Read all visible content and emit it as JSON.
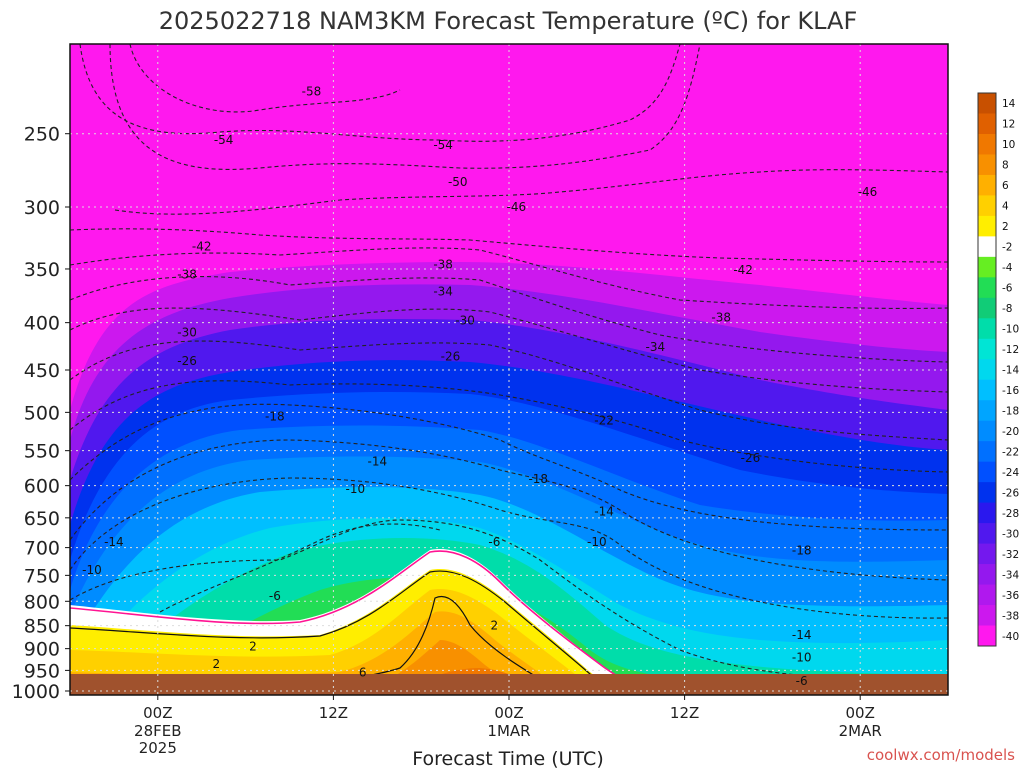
{
  "chart_data": {
    "type": "time-height contour",
    "title": "2025022718 NAM3KM Forecast Temperature (ºC) for KLAF",
    "xlabel": "Forecast Time (UTC)",
    "ylabel": "",
    "y_ticks": [
      "250",
      "300",
      "350",
      "400",
      "450",
      "500",
      "550",
      "600",
      "650",
      "700",
      "750",
      "800",
      "850",
      "900",
      "950",
      "1000"
    ],
    "y_scale": "log",
    "y_range_hpa": [
      200,
      1010
    ],
    "x_ticks": [
      {
        "label": "00Z",
        "date": "28FEB",
        "year": "2025",
        "hour": 6
      },
      {
        "label": "12Z",
        "date": "",
        "year": "",
        "hour": 18
      },
      {
        "label": "00Z",
        "date": "1MAR",
        "year": "",
        "hour": 30
      },
      {
        "label": "12Z",
        "date": "",
        "year": "",
        "hour": 42
      },
      {
        "label": "00Z",
        "date": "2MAR",
        "year": "",
        "hour": 54
      }
    ],
    "x_range_hours": [
      0,
      60
    ],
    "grid": true,
    "colorbar": {
      "placement": "right",
      "labels": [
        "14",
        "12",
        "10",
        "8",
        "6",
        "4",
        "2",
        "-2",
        "-4",
        "-6",
        "-8",
        "-10",
        "-12",
        "-14",
        "-16",
        "-18",
        "-20",
        "-22",
        "-24",
        "-26",
        "-28",
        "-30",
        "-32",
        "-34",
        "-36",
        "-38",
        "-40"
      ],
      "colors": [
        "#c85000",
        "#e06000",
        "#f07800",
        "#f89000",
        "#ffb000",
        "#ffd000",
        "#ffee00",
        "#ffffff",
        "#66ee22",
        "#22dd55",
        "#11cc77",
        "#00ddaa",
        "#00e5d5",
        "#00d8ee",
        "#00bfff",
        "#00a5ff",
        "#008cff",
        "#0070ff",
        "#0050ff",
        "#0032ee",
        "#2a18ee",
        "#5018ee",
        "#7418ee",
        "#9418ee",
        "#b018ee",
        "#cc18ee",
        "#ff18ee"
      ]
    },
    "contour_labels": [
      {
        "text": "-58",
        "hour": 16.5,
        "p": 225
      },
      {
        "text": "-54",
        "hour": 10.5,
        "p": 254
      },
      {
        "text": "-54",
        "hour": 25.5,
        "p": 257
      },
      {
        "text": "-50",
        "hour": 26.5,
        "p": 282
      },
      {
        "text": "-46",
        "hour": 30.5,
        "p": 300
      },
      {
        "text": "-46",
        "hour": 54.5,
        "p": 289
      },
      {
        "text": "-42",
        "hour": 9,
        "p": 331
      },
      {
        "text": "-42",
        "hour": 46,
        "p": 351
      },
      {
        "text": "-38",
        "hour": 8,
        "p": 355
      },
      {
        "text": "-38",
        "hour": 25.5,
        "p": 346
      },
      {
        "text": "-38",
        "hour": 44.5,
        "p": 395
      },
      {
        "text": "-34",
        "hour": 25.5,
        "p": 370
      },
      {
        "text": "-34",
        "hour": 40,
        "p": 425
      },
      {
        "text": "-30",
        "hour": 8,
        "p": 410
      },
      {
        "text": "-30",
        "hour": 27,
        "p": 398
      },
      {
        "text": "-26",
        "hour": 8,
        "p": 440
      },
      {
        "text": "-26",
        "hour": 26,
        "p": 435
      },
      {
        "text": "-26",
        "hour": 46.5,
        "p": 560
      },
      {
        "text": "-22",
        "hour": 36.5,
        "p": 510
      },
      {
        "text": "-18",
        "hour": 14,
        "p": 505
      },
      {
        "text": "-18",
        "hour": 32,
        "p": 590
      },
      {
        "text": "-18",
        "hour": 50,
        "p": 705
      },
      {
        "text": "-14",
        "hour": 21,
        "p": 565
      },
      {
        "text": "-14",
        "hour": 3,
        "p": 690
      },
      {
        "text": "-14",
        "hour": 36.5,
        "p": 640
      },
      {
        "text": "-14",
        "hour": 50,
        "p": 870
      },
      {
        "text": "-10",
        "hour": 19.5,
        "p": 605
      },
      {
        "text": "-10",
        "hour": 1.5,
        "p": 740
      },
      {
        "text": "-10",
        "hour": 36,
        "p": 690
      },
      {
        "text": "-10",
        "hour": 50,
        "p": 920
      },
      {
        "text": "-6",
        "hour": 29,
        "p": 690
      },
      {
        "text": "-6",
        "hour": 14,
        "p": 790
      },
      {
        "text": "-6",
        "hour": 50,
        "p": 975
      },
      {
        "text": "2",
        "hour": 29,
        "p": 850
      },
      {
        "text": "2",
        "hour": 12.5,
        "p": 895
      },
      {
        "text": "2",
        "hour": 10,
        "p": 935
      },
      {
        "text": "6",
        "hour": 20,
        "p": 955
      }
    ]
  },
  "credit": "coolwx.com/models"
}
